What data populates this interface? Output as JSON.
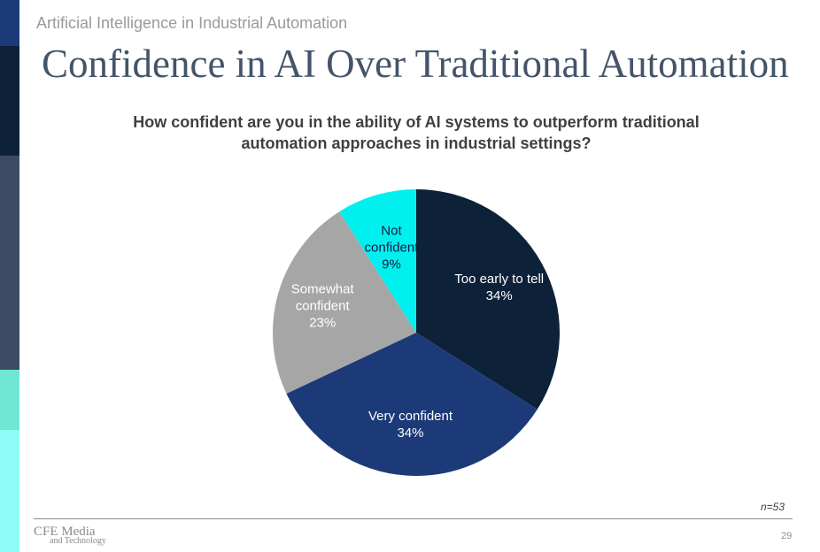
{
  "slide": {
    "supertitle": "Artificial Intelligence in Industrial Automation",
    "title": "Confidence in AI Over Traditional Automation",
    "sample_note": "n=53",
    "page_number": "29",
    "logo": {
      "main": "CFE Media",
      "sub": "and Technology"
    }
  },
  "chart_data": {
    "type": "pie",
    "title": "How confident are you in the ability of AI systems to outperform traditional automation approaches in industrial settings?",
    "slices": [
      {
        "label": "Too early to tell",
        "value": 34,
        "display": "34%",
        "color": "#0d2238",
        "label_color": "#ffffff"
      },
      {
        "label": "Very confident",
        "value": 34,
        "display": "34%",
        "color": "#1d3a78",
        "label_color": "#ffffff"
      },
      {
        "label": "Somewhat confident",
        "value": 23,
        "display": "23%",
        "color": "#a6a6a6",
        "label_color": "#ffffff"
      },
      {
        "label": "Not confident",
        "value": 9,
        "display": "9%",
        "color": "#00f0f0",
        "label_color": "#1a1a3a"
      }
    ]
  }
}
